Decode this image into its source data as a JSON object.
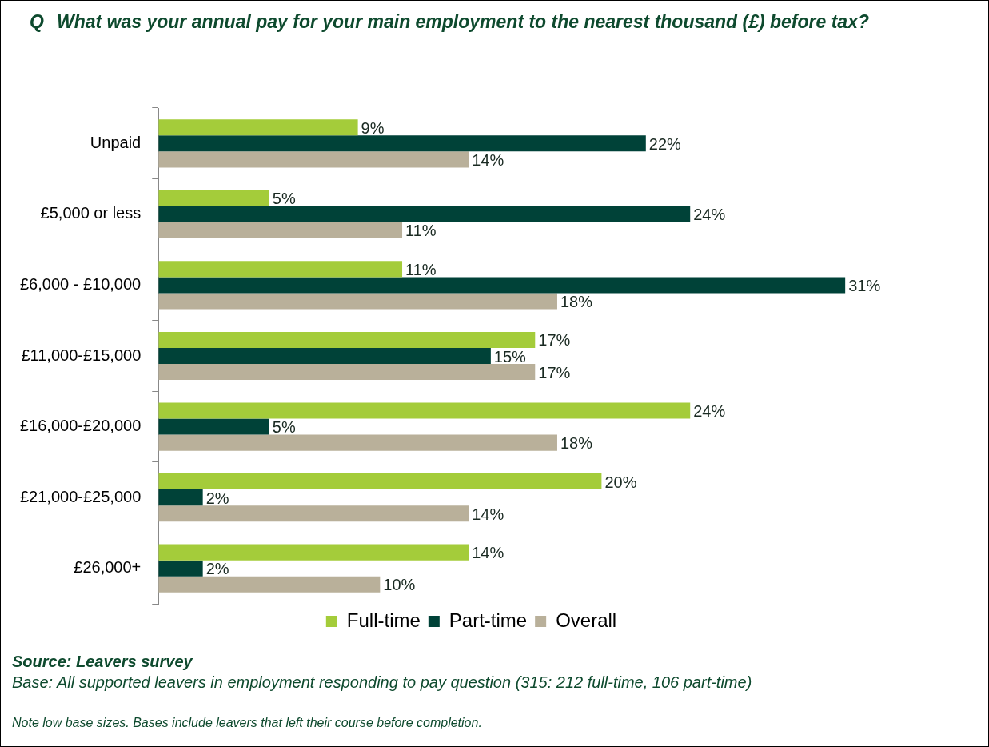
{
  "chart_data": {
    "type": "bar",
    "orientation": "horizontal",
    "title": "Q What was your annual pay for your main employment to the nearest thousand (£) before tax?",
    "categories": [
      "Unpaid",
      "£5,000 or less",
      "£6,000 - £10,000",
      "£11,000-£15,000",
      "£16,000-£20,000",
      "£21,000-£25,000",
      "£26,000+"
    ],
    "series": [
      {
        "name": "Full-time",
        "color": "#a4cc3a",
        "values": [
          9,
          5,
          11,
          17,
          24,
          20,
          14
        ],
        "value_labels": [
          "9%",
          "5%",
          "11%",
          "17%",
          "24%",
          "20%",
          "14%"
        ]
      },
      {
        "name": "Part-time",
        "color": "#004238",
        "values": [
          22,
          24,
          31,
          15,
          5,
          2,
          2
        ],
        "value_labels": [
          "22%",
          "24%",
          "31%",
          "15%",
          "5%",
          "2%",
          "2%"
        ]
      },
      {
        "name": "Overall",
        "color": "#b9b09a",
        "values": [
          14,
          11,
          18,
          17,
          18,
          14,
          10
        ],
        "value_labels": [
          "14%",
          "11%",
          "18%",
          "17%",
          "18%",
          "14%",
          "10%"
        ]
      }
    ],
    "legend": "bottom",
    "annotations": [
      "Source: Leavers survey",
      "Base: All supported leavers in employment responding to pay question (315: 212 full-time, 106 part-time)",
      "Note low base sizes.  Bases include leavers that left their course before completion."
    ]
  }
}
